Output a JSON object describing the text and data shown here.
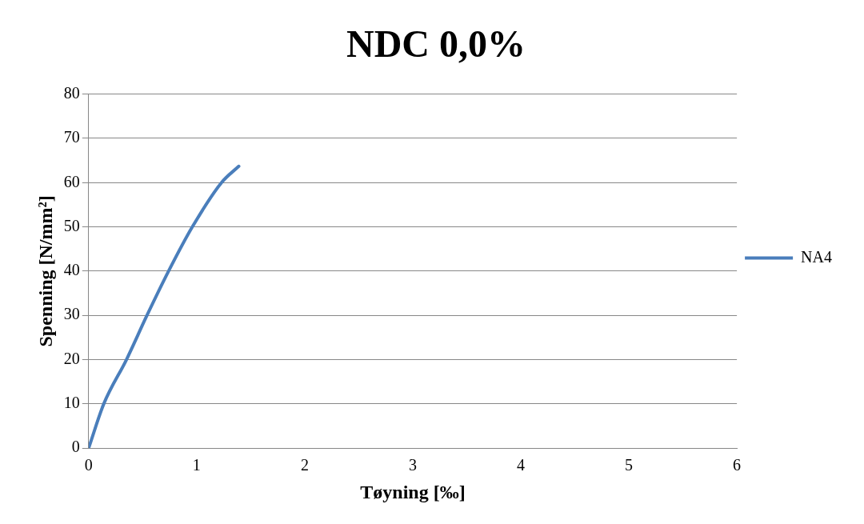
{
  "chart_data": {
    "type": "line",
    "title": "NDC 0,0%",
    "xlabel": "Tøyning [‰]",
    "ylabel": "Spenning [N/mm²]",
    "xlim": [
      0,
      6
    ],
    "xticks": [
      0,
      1,
      2,
      3,
      4,
      5,
      6
    ],
    "ylim": [
      0,
      80
    ],
    "yticks": [
      0,
      10,
      20,
      30,
      40,
      50,
      60,
      70,
      80
    ],
    "grid": "y",
    "legend": "right",
    "marker": "none",
    "line_style": "solid",
    "series": [
      {
        "name": "NA4",
        "color": "#4a7ebb",
        "x": [
          0,
          0.14,
          0.35,
          0.54,
          0.74,
          0.96,
          1.23,
          1.39
        ],
        "values": [
          0,
          10,
          20,
          30,
          40,
          50,
          60,
          63.7
        ]
      }
    ]
  }
}
